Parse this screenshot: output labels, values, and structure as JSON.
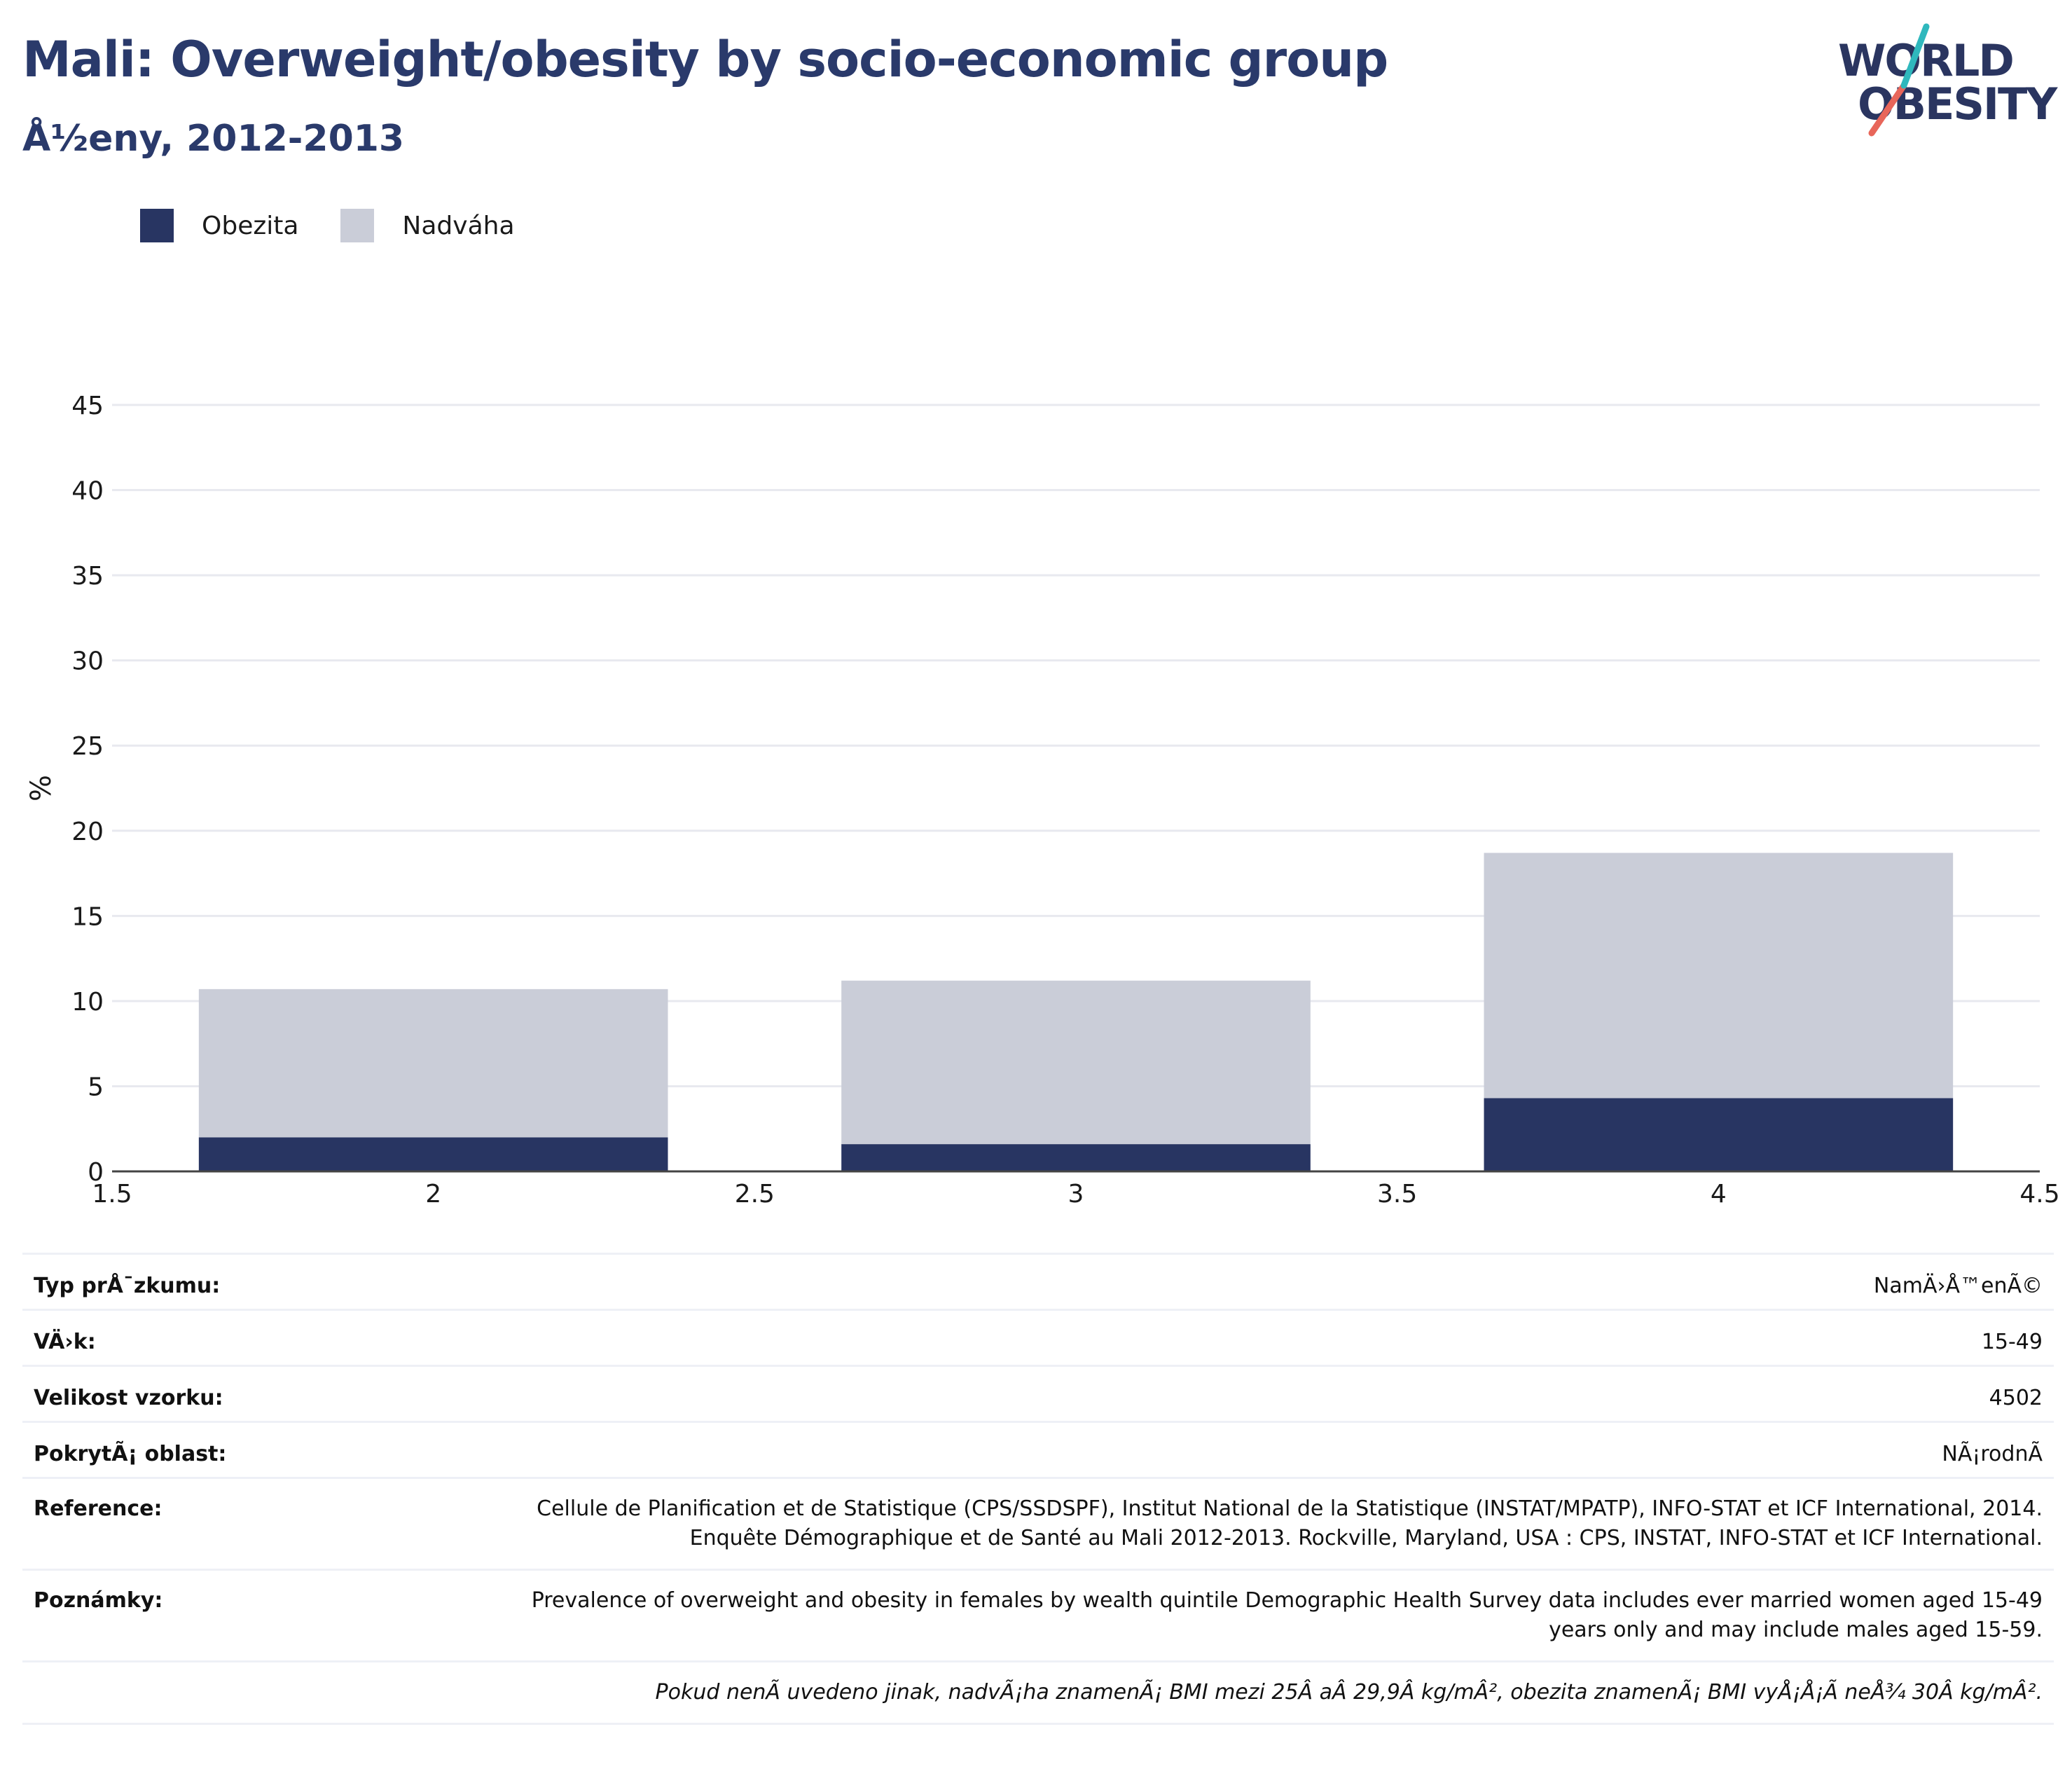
{
  "header": {
    "title": "Mali: Overweight/obesity by socio-economic group",
    "subtitle": "Å½eny, 2012-2013"
  },
  "logo": {
    "line1": "WORLD",
    "line2": "OBESITY",
    "colors": {
      "text": "#2a3560",
      "slash_teal": "#2fb8bd",
      "slash_coral": "#e8665a"
    }
  },
  "colors": {
    "obesity": "#283562",
    "overweight": "#cacdd8",
    "title": "#2a3a6b",
    "grid": "#e8e9ef",
    "axis": "#444444"
  },
  "chart_data": {
    "type": "bar",
    "stacked": true,
    "title": "Mali: Overweight/obesity by socio-economic group",
    "subtitle": "Å½eny, 2012-2013",
    "xlabel": "",
    "ylabel": "%",
    "xlim": [
      1.5,
      4.5
    ],
    "ylim": [
      0,
      45
    ],
    "x": [
      2,
      3,
      4
    ],
    "x_ticks": [
      "1.5",
      "2",
      "2.5",
      "3",
      "3.5",
      "4",
      "4.5"
    ],
    "y_ticks": [
      "0",
      "5",
      "10",
      "15",
      "20",
      "25",
      "30",
      "35",
      "40",
      "45"
    ],
    "series": [
      {
        "name": "Obezita",
        "values": [
          2.0,
          1.6,
          4.3
        ]
      },
      {
        "name": "Nadváha",
        "values": [
          8.7,
          9.6,
          14.4
        ]
      }
    ],
    "grid": true,
    "legend": "top-left"
  },
  "table": {
    "rows": [
      {
        "key": "Typ prÅ¯zkumu:",
        "value": "NamÄ›Å™enÃ©"
      },
      {
        "key": "VÄ›k:",
        "value": "15-49"
      },
      {
        "key": "Velikost vzorku:",
        "value": "4502"
      },
      {
        "key": "PokrytÃ¡ oblast:",
        "value": "NÃ¡rodnÃ"
      },
      {
        "key": "Reference:",
        "value": "Cellule de Planification et de Statistique (CPS/SSDSPF), Institut National de la Statistique (INSTAT/MPATP), INFO-STAT et ICF International, 2014. Enquête Démographique et de Santé au Mali 2012-2013. Rockville, Maryland, USA : CPS, INSTAT, INFO-STAT et ICF International."
      },
      {
        "key": "Poznámky:",
        "value": "Prevalence of overweight and obesity in females by wealth quintile Demographic Health Survey data includes ever married women aged 15-49 years only and may include males aged 15-59."
      }
    ],
    "footnote": "Pokud nenÃ uvedeno jinak, nadvÃ¡ha znamenÃ¡ BMI mezi 25Â aÂ 29,9Â kg/mÂ², obezita znamenÃ¡ BMI vyÅ¡Å¡Ã neÅ¾ 30Â kg/mÂ²."
  }
}
